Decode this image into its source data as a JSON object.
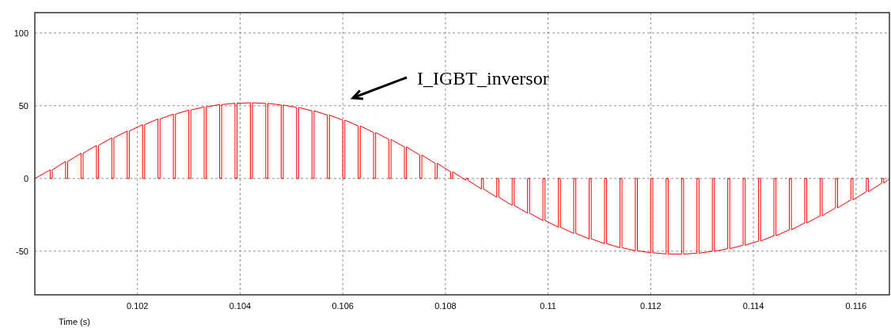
{
  "chart_data": {
    "type": "line",
    "xlabel": "Time (s)",
    "xlim": [
      0.1,
      0.11665
    ],
    "ylim": [
      -80,
      114
    ],
    "xticks": [
      0.102,
      0.104,
      0.106,
      0.108,
      0.11,
      0.112,
      0.114,
      0.116
    ],
    "yticks": [
      -50,
      0,
      50,
      100
    ],
    "grid": true,
    "line_style": "solid",
    "marker": "none",
    "annotations": [
      "I_IGBT_inversor"
    ],
    "series": [
      {
        "color": "#ff0000",
        "x": [
          0.1,
          0.1003,
          0.1003,
          0.10034,
          0.10034,
          0.1006,
          0.1006,
          0.10064,
          0.10064,
          0.1009,
          0.1009,
          0.10094,
          0.10094,
          0.1012,
          0.1012,
          0.10124,
          0.10124,
          0.1015,
          0.1015,
          0.10154,
          0.10154,
          0.1018,
          0.1018,
          0.10184,
          0.10184,
          0.1021,
          0.1021,
          0.10214,
          0.10214,
          0.1024,
          0.1024,
          0.10244,
          0.10244,
          0.1027,
          0.1027,
          0.10274,
          0.10274,
          0.103,
          0.103,
          0.10304,
          0.10304,
          0.1033,
          0.1033,
          0.10334,
          0.10334,
          0.1036,
          0.1036,
          0.10364,
          0.10364,
          0.1039,
          0.1039,
          0.10394,
          0.10394,
          0.1042,
          0.1042,
          0.10424,
          0.10424,
          0.1045,
          0.1045,
          0.10454,
          0.10454,
          0.1048,
          0.1048,
          0.10484,
          0.10484,
          0.1051,
          0.1051,
          0.10514,
          0.10514,
          0.1054,
          0.1054,
          0.10544,
          0.10544,
          0.1057,
          0.1057,
          0.10574,
          0.10574,
          0.106,
          0.106,
          0.10604,
          0.10604,
          0.1063,
          0.1063,
          0.10634,
          0.10634,
          0.1066,
          0.1066,
          0.10664,
          0.10664,
          0.1069,
          0.1069,
          0.10694,
          0.10694,
          0.1072,
          0.1072,
          0.10724,
          0.10724,
          0.1075,
          0.1075,
          0.10754,
          0.10754,
          0.1078,
          0.1078,
          0.10784,
          0.10784,
          0.1081,
          0.1081,
          0.10814,
          0.10814,
          0.1084,
          0.1084,
          0.10844,
          0.10844,
          0.1087,
          0.1087,
          0.10874,
          0.10874,
          0.109,
          0.109,
          0.10904,
          0.10904,
          0.1093,
          0.1093,
          0.10934,
          0.10934,
          0.1096,
          0.1096,
          0.10964,
          0.10964,
          0.1099,
          0.1099,
          0.10994,
          0.10994,
          0.1102,
          0.1102,
          0.11024,
          0.11024,
          0.1105,
          0.1105,
          0.11054,
          0.11054,
          0.1108,
          0.1108,
          0.11084,
          0.11084,
          0.1111,
          0.1111,
          0.11114,
          0.11114,
          0.1114,
          0.1114,
          0.11144,
          0.11144,
          0.1117,
          0.1117,
          0.11174,
          0.11174,
          0.112,
          0.112,
          0.11204,
          0.11204,
          0.1123,
          0.1123,
          0.11234,
          0.11234,
          0.1126,
          0.1126,
          0.11264,
          0.11264,
          0.1129,
          0.1129,
          0.11294,
          0.11294,
          0.1132,
          0.1132,
          0.11324,
          0.11324,
          0.1135,
          0.1135,
          0.11354,
          0.11354,
          0.1138,
          0.1138,
          0.11384,
          0.11384,
          0.1141,
          0.1141,
          0.11414,
          0.11414,
          0.1144,
          0.1144,
          0.11444,
          0.11444,
          0.1147,
          0.1147,
          0.11474,
          0.11474,
          0.115,
          0.115,
          0.11504,
          0.11504,
          0.1153,
          0.1153,
          0.11534,
          0.11534,
          0.1156,
          0.1156,
          0.11564,
          0.11564,
          0.1159,
          0.1159,
          0.11594,
          0.11594,
          0.1162,
          0.1162,
          0.11624,
          0.11624,
          0.1165,
          0.1165,
          0.11654,
          0.11654,
          0.11665
        ],
        "values": [
          0,
          5.9,
          0,
          0,
          5.9,
          11.7,
          0,
          0,
          11.7,
          17.3,
          0,
          0,
          17.3,
          22.7,
          0,
          0,
          22.7,
          27.9,
          0,
          0,
          27.9,
          32.6,
          0,
          0,
          32.6,
          37,
          0,
          0,
          37,
          40.9,
          0,
          0,
          40.9,
          44.2,
          0,
          0,
          44.2,
          47,
          0,
          0,
          47,
          49.2,
          0,
          0,
          49.2,
          50.8,
          0,
          0,
          50.8,
          51.7,
          0,
          0,
          51.7,
          52,
          0,
          0,
          52,
          51.6,
          0,
          0,
          51.6,
          50.5,
          0,
          0,
          50.5,
          48.8,
          0,
          0,
          48.8,
          46.5,
          0,
          0,
          46.5,
          43.6,
          0,
          0,
          43.6,
          40.1,
          0,
          0,
          40.1,
          36.1,
          0,
          0,
          36.1,
          31.6,
          0,
          0,
          31.6,
          26.8,
          0,
          0,
          26.8,
          21.7,
          0,
          0,
          21.7,
          16.1,
          0,
          0,
          16.1,
          10.4,
          0,
          0,
          10.4,
          4.6,
          0,
          0,
          4.6,
          -1.3,
          0,
          0,
          -1.3,
          -7.2,
          0,
          0,
          -7.2,
          -12.9,
          0,
          0,
          -12.9,
          -18.5,
          0,
          0,
          -18.5,
          -23.9,
          0,
          0,
          -23.9,
          -28.9,
          0,
          0,
          -28.9,
          -33.5,
          0,
          0,
          -33.5,
          -37.8,
          0,
          0,
          -37.8,
          -41.5,
          0,
          0,
          -41.5,
          -44.8,
          0,
          0,
          -44.8,
          -47.6,
          0,
          0,
          -47.6,
          -49.7,
          0,
          0,
          -49.7,
          -51.1,
          0,
          0,
          -51.1,
          -51.9,
          0,
          0,
          -51.9,
          -52,
          0,
          0,
          -52,
          -51.4,
          0,
          0,
          -51.4,
          -50.1,
          0,
          0,
          -50.1,
          -48.3,
          0,
          0,
          -48.3,
          -45.9,
          0,
          0,
          -45.9,
          -43,
          0,
          0,
          -43,
          -39.4,
          0,
          0,
          -39.4,
          -35.3,
          0,
          0,
          -35.3,
          -30.6,
          0,
          0,
          -30.6,
          -25.7,
          0,
          0,
          -25.7,
          -20.2,
          0,
          0,
          -20.2,
          -14.7,
          0,
          0,
          -14.7,
          -9.1,
          0,
          0,
          -9.1,
          -3.3,
          0,
          0,
          -3.3,
          0
        ]
      }
    ]
  }
}
